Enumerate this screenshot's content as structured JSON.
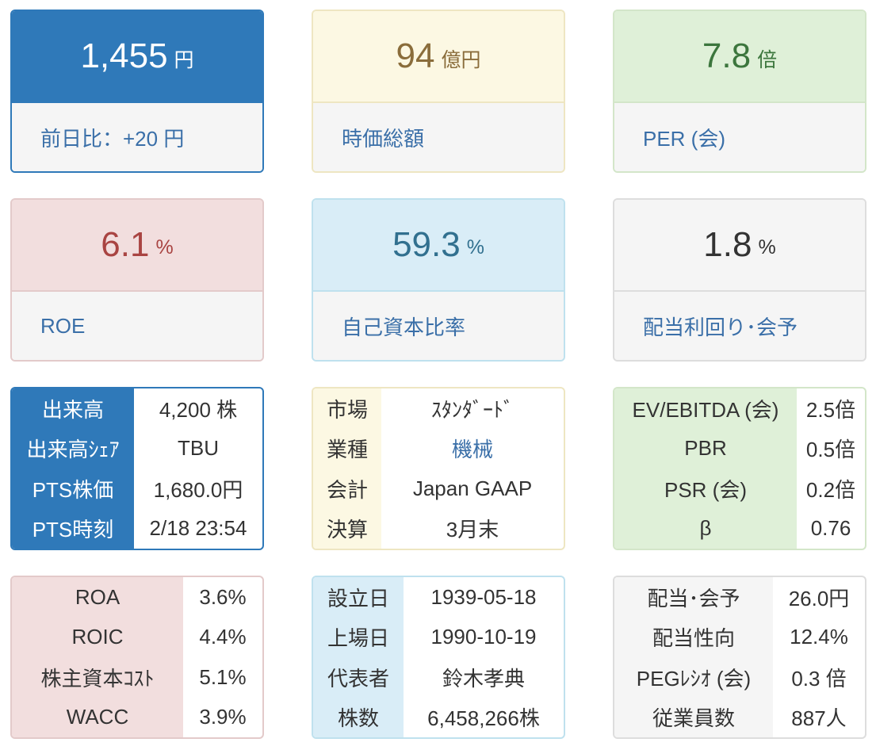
{
  "price": {
    "value": "1,455",
    "unit": "円",
    "label": "前日比：+20 円"
  },
  "market_cap": {
    "value": "94",
    "unit": "億円",
    "label": "時価総額"
  },
  "per": {
    "value": "7.8",
    "unit": "倍",
    "label": "PER (会)"
  },
  "roe": {
    "value": "6.1",
    "unit": "%",
    "label": "ROE"
  },
  "equity_ratio": {
    "value": "59.3",
    "unit": "%",
    "label": "自己資本比率"
  },
  "dividend_yield": {
    "value": "1.8",
    "unit": "%",
    "label": "配当利回り･会予"
  },
  "volume_table": {
    "rows": [
      {
        "key": "出来高",
        "value": "4,200 株"
      },
      {
        "key": "出来高ｼｪｱ",
        "value": "TBU"
      },
      {
        "key": "PTS株価",
        "value": "1,680.0円"
      },
      {
        "key": "PTS時刻",
        "value": "2/18 23:54"
      }
    ]
  },
  "market_table": {
    "rows": [
      {
        "key": "市場",
        "value": "ｽﾀﾝﾀﾞｰﾄﾞ"
      },
      {
        "key": "業種",
        "value": "機械"
      },
      {
        "key": "会計",
        "value": "Japan GAAP"
      },
      {
        "key": "決算",
        "value": "3月末"
      }
    ]
  },
  "valuation_table": {
    "rows": [
      {
        "key": "EV/EBITDA (会)",
        "value": "2.5倍"
      },
      {
        "key": "PBR",
        "value": "0.5倍"
      },
      {
        "key": "PSR (会)",
        "value": "0.2倍"
      },
      {
        "key": "β",
        "value": "0.76"
      }
    ]
  },
  "returns_table": {
    "rows": [
      {
        "key": "ROA",
        "value": "3.6%"
      },
      {
        "key": "ROIC",
        "value": "4.4%"
      },
      {
        "key": "株主資本ｺｽﾄ",
        "value": "5.1%"
      },
      {
        "key": "WACC",
        "value": "3.9%"
      }
    ]
  },
  "company_table": {
    "rows": [
      {
        "key": "設立日",
        "value": "1939-05-18"
      },
      {
        "key": "上場日",
        "value": "1990-10-19"
      },
      {
        "key": "代表者",
        "value": "鈴木孝典"
      },
      {
        "key": "株数",
        "value": "6,458,266株"
      }
    ]
  },
  "dividend_table": {
    "rows": [
      {
        "key": "配当･会予",
        "value": "26.0円"
      },
      {
        "key": "配当性向",
        "value": "12.4%"
      },
      {
        "key": "PEGﾚｼｵ (会)",
        "value": "0.3 倍"
      },
      {
        "key": "従業員数",
        "value": "887人"
      }
    ]
  }
}
